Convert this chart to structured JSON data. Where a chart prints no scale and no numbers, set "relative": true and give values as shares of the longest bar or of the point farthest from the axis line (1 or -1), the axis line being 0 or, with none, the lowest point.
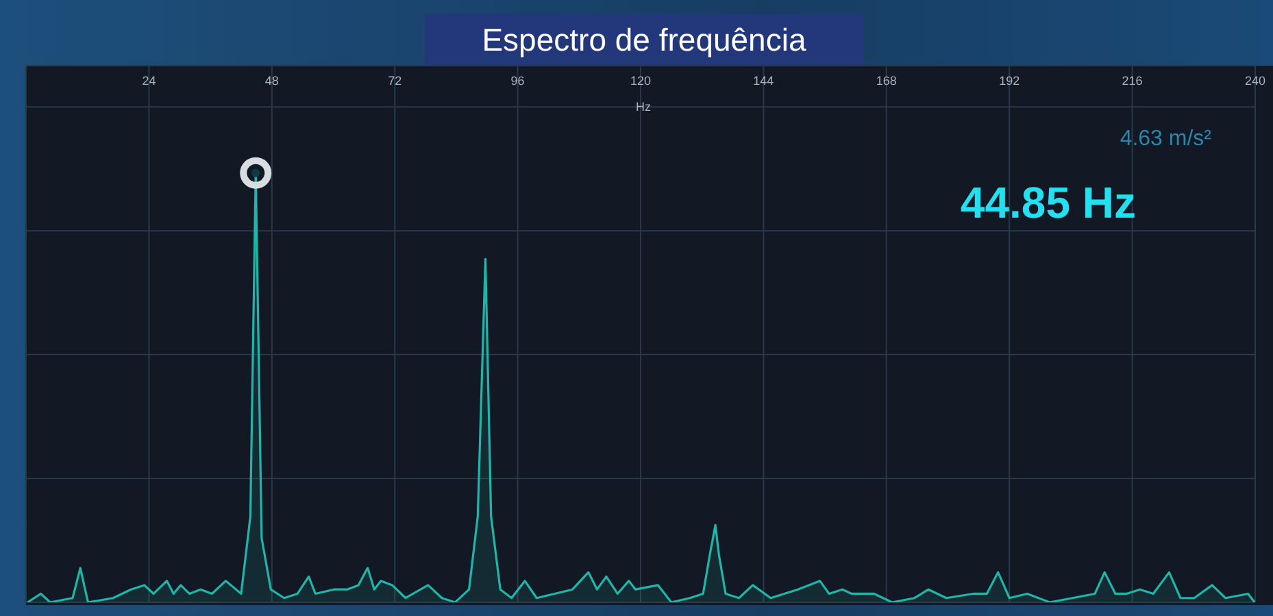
{
  "chart_data": {
    "type": "area",
    "title": "Espectro de frequência",
    "xlabel": "Hz",
    "relative": true,
    "xlim": [
      0,
      240
    ],
    "xticks": [
      24,
      48,
      72,
      96,
      120,
      144,
      168,
      192,
      216,
      240
    ],
    "grid": true,
    "x": [
      0.3,
      2.9,
      4.7,
      9.1,
      10.6,
      12.1,
      17,
      20.5,
      23.1,
      24.9,
      27.5,
      28.8,
      30.2,
      31.9,
      34.1,
      36.3,
      39,
      42,
      43.8,
      44.85,
      46,
      47.8,
      50.4,
      53,
      55.2,
      56.5,
      60.1,
      62.7,
      64.9,
      66.7,
      68,
      69.3,
      71.5,
      74.1,
      78.5,
      81.2,
      83.8,
      86.5,
      88.2,
      89.7,
      90.8,
      92.6,
      94.8,
      97.4,
      99.7,
      103.2,
      106.7,
      109.8,
      111.5,
      113.3,
      115.5,
      117.7,
      119,
      123.4,
      126,
      129.6,
      132.2,
      133.5,
      134.6,
      135.3,
      136.6,
      139.2,
      141.9,
      145.4,
      150.7,
      155,
      156.8,
      159.4,
      161.2,
      165.6,
      169.1,
      173.5,
      176.2,
      179.7,
      184.9,
      187.6,
      189.8,
      192,
      195.5,
      199.9,
      204.3,
      208.7,
      210.6,
      212.7,
      214.9,
      217.5,
      220.1,
      223.2,
      225.4,
      228.1,
      231.6,
      234.2,
      238.6,
      239.9
    ],
    "series": [
      {
        "color": "#1fb5a8",
        "values": [
          0,
          0.02,
          0,
          0.01,
          0.08,
          0,
          0.01,
          0.03,
          0.04,
          0.02,
          0.05,
          0.02,
          0.04,
          0.02,
          0.03,
          0.02,
          0.05,
          0.02,
          0.2,
          1,
          0.15,
          0.03,
          0.01,
          0.02,
          0.06,
          0.02,
          0.03,
          0.03,
          0.04,
          0.08,
          0.03,
          0.05,
          0.04,
          0.01,
          0.04,
          0.01,
          0,
          0.03,
          0.2,
          0.8,
          0.2,
          0.03,
          0.01,
          0.05,
          0.01,
          0.02,
          0.03,
          0.07,
          0.03,
          0.06,
          0.02,
          0.05,
          0.03,
          0.04,
          0,
          0.01,
          0.02,
          0.11,
          0.18,
          0.11,
          0.02,
          0.01,
          0.04,
          0.01,
          0.03,
          0.05,
          0.02,
          0.03,
          0.02,
          0.02,
          0,
          0.01,
          0.03,
          0.01,
          0.02,
          0.02,
          0.07,
          0.01,
          0.02,
          0,
          0.01,
          0.02,
          0.07,
          0.02,
          0.02,
          0.03,
          0.02,
          0.07,
          0.01,
          0.01,
          0.04,
          0.01,
          0.02,
          0
        ]
      }
    ],
    "annotations": [
      "44.85 Hz",
      "4.63 m/s²"
    ]
  }
}
